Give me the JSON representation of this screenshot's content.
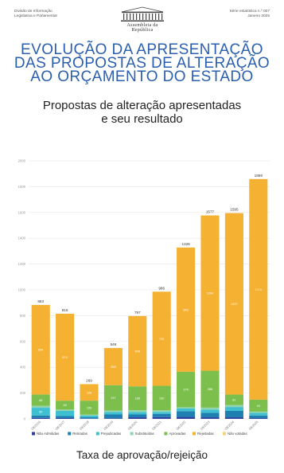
{
  "header": {
    "left_lines": [
      "Divisão de Informação",
      "Legislativa e Parlamentar"
    ],
    "right_lines": [
      "Série estatística n.º 007",
      "Janeiro 2025"
    ],
    "logo_text": "Assembleia da República"
  },
  "title_lines": [
    "EVOLUÇÃO DA APRESENTAÇÃO",
    "DAS PROPOSTAS DE ALTERAÇÃO",
    "AO ORÇAMENTO DO ESTADO"
  ],
  "subtitle_lines": [
    "Propostas de alteração apresentadas",
    "e seu resultado"
  ],
  "bottom_title": "Taxa de aprovação/rejeição",
  "chart_data": {
    "type": "bar",
    "stacked": true,
    "ylim": [
      0,
      2000
    ],
    "yticks": [
      0,
      200,
      400,
      600,
      800,
      1000,
      1200,
      1400,
      1600,
      1800,
      2000
    ],
    "grid": true,
    "legend_position": "bottom",
    "categories": [
      "OE2016",
      "OE2017",
      "OE2018",
      "OE2019",
      "OE2020",
      "OE2021",
      "OE2022",
      "OE2023",
      "OE2024",
      "OE2025"
    ],
    "totals": [
      883,
      815,
      269,
      549,
      797,
      986,
      1328,
      1577,
      1595,
      1859
    ],
    "series": [
      {
        "name": "Não Admitidas",
        "color": "#2f3f9e",
        "values": [
          8,
          6,
          2,
          4,
          12,
          14,
          15,
          12,
          12,
          6
        ]
      },
      {
        "name": "Retiradas",
        "color": "#1f7fb0",
        "values": [
          18,
          16,
          10,
          30,
          22,
          25,
          45,
          35,
          50,
          20
        ]
      },
      {
        "name": "Prejudicadas",
        "color": "#3fc0d0",
        "values": [
          60,
          40,
          14,
          20,
          18,
          15,
          20,
          25,
          30,
          20
        ]
      },
      {
        "name": "Substituídas",
        "color": "#8fd3b0",
        "values": [
          15,
          10,
          6,
          10,
          15,
          12,
          10,
          15,
          15,
          10
        ]
      },
      {
        "name": "Aprovadas",
        "color": "#7cbf4c",
        "values": [
          88,
          69,
          109,
          197,
          185,
          190,
          275,
          286,
          81,
          93
        ]
      },
      {
        "name": "Rejeitadas",
        "color": "#f4b132",
        "values": [
          694,
          674,
          128,
          288,
          545,
          730,
          963,
          1204,
          1407,
          1710
        ]
      },
      {
        "name": "Não votadas",
        "color": "#f7d27a",
        "values": [
          0,
          0,
          0,
          0,
          0,
          0,
          0,
          0,
          0,
          0
        ]
      }
    ]
  }
}
